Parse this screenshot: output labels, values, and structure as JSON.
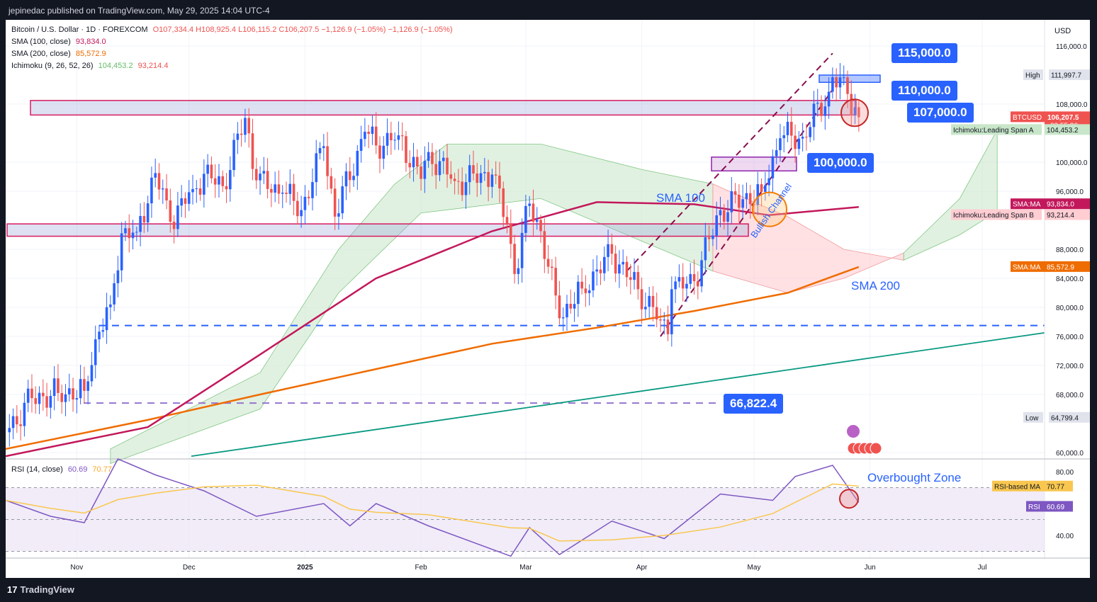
{
  "header": {
    "publisher": "jepinedac published on TradingView.com, May 29, 2025 14:04 UTC-4"
  },
  "footer": {
    "brand": "TradingView"
  },
  "legend": {
    "symbol": "Bitcoin / U.S. Dollar · 1D · FOREXCOM",
    "ohlc": "O107,334.4  H108,925.4  L106,115.2  C106,207.5  −1,126.9 (−1.05%)  −1,126.9 (−1.05%)",
    "sma100_label": "SMA (100, close)",
    "sma100_value": "93,834.0",
    "sma200_label": "SMA (200, close)",
    "sma200_value": "85,572.9",
    "ichimoku_label": "Ichimoku (9, 26, 52, 26)",
    "ichimoku_a": "104,453.2",
    "ichimoku_b": "93,214.4",
    "rsi_label": "RSI (14, close)",
    "rsi_value": "60.69",
    "rsi_ma_value": "70.77"
  },
  "colors": {
    "up": "#2962ff",
    "down": "#ef5350",
    "sma100": "#c2185b",
    "sma200": "#ef6c00",
    "cloud_green": "#c8e6c9",
    "cloud_red": "#ffcdd2",
    "rsi": "#7e57c2",
    "rsi_ma": "#f9c74f",
    "accent": "#2962ff",
    "trendline": "#089981"
  },
  "axis": {
    "currency": "USD",
    "price_ticks": [
      "116,000.0",
      "108,000.0",
      "100,000.0",
      "96,000.0",
      "88,000.0",
      "84,000.0",
      "80,000.0",
      "76,000.0",
      "72,000.0",
      "68,000.0",
      "60,000.0"
    ],
    "time_ticks": [
      "Nov",
      "Dec",
      "2025",
      "Feb",
      "Mar",
      "Apr",
      "May",
      "Jun",
      "Jul"
    ],
    "rsi_ticks": [
      "80.00",
      "40.00"
    ]
  },
  "price_labels": {
    "high_label": "High",
    "high_value": "111,997.7",
    "low_label": "Low",
    "low_value": "64,799.4",
    "btc_label": "BTCUSD",
    "btc_value": "106,207.5",
    "countdown": "02:55:36",
    "span_a_label": "Ichimoku:Leading Span A",
    "span_a_value": "104,453.2",
    "sma100_tag": "SMA:MA",
    "sma100_tag_value": "93,834.0",
    "span_b_label": "Ichimoku:Leading Span B",
    "span_b_value": "93,214.4",
    "sma200_tag": "SMA:MA",
    "sma200_tag_value": "85,572.9",
    "rsi_ma_tag": "RSI-based MA",
    "rsi_ma_tag_value": "70.77",
    "rsi_tag": "RSI",
    "rsi_tag_value": "60.69"
  },
  "annotations": {
    "level_115": "115,000.0",
    "level_110": "110,000.0",
    "level_107": "107,000.0",
    "level_100": "100,000.0",
    "level_66": "66,822.4",
    "sma100": "SMA 100",
    "sma200": "SMA 200",
    "channel": "Bullish Channel",
    "overbought": "Overbought Zone"
  },
  "chart_data": {
    "type": "candlestick",
    "symbol": "BTCUSD",
    "timeframe": "1D",
    "ylim": [
      58000,
      120000
    ],
    "close_series": [
      {
        "date": "2024-10-13",
        "close": 62800
      },
      {
        "date": "2024-10-20",
        "close": 67500
      },
      {
        "date": "2024-10-27",
        "close": 68200
      },
      {
        "date": "2024-11-03",
        "close": 68500
      },
      {
        "date": "2024-11-06",
        "close": 75600
      },
      {
        "date": "2024-11-10",
        "close": 80400
      },
      {
        "date": "2024-11-13",
        "close": 90200
      },
      {
        "date": "2024-11-17",
        "close": 90400
      },
      {
        "date": "2024-11-22",
        "close": 98500
      },
      {
        "date": "2024-11-26",
        "close": 91800
      },
      {
        "date": "2024-12-02",
        "close": 96300
      },
      {
        "date": "2024-12-05",
        "close": 98400
      },
      {
        "date": "2024-12-10",
        "close": 96700
      },
      {
        "date": "2024-12-16",
        "close": 106100
      },
      {
        "date": "2024-12-19",
        "close": 97500
      },
      {
        "date": "2024-12-26",
        "close": 95800
      },
      {
        "date": "2024-12-31",
        "close": 93400
      },
      {
        "date": "2025-01-06",
        "close": 102200
      },
      {
        "date": "2025-01-09",
        "close": 92500
      },
      {
        "date": "2025-01-17",
        "close": 104200
      },
      {
        "date": "2025-01-20",
        "close": 102300
      },
      {
        "date": "2025-01-26",
        "close": 103700
      },
      {
        "date": "2025-02-01",
        "close": 97700
      },
      {
        "date": "2025-02-03",
        "close": 101400
      },
      {
        "date": "2025-02-10",
        "close": 97400
      },
      {
        "date": "2025-02-20",
        "close": 98300
      },
      {
        "date": "2025-02-24",
        "close": 91500
      },
      {
        "date": "2025-02-26",
        "close": 84600
      },
      {
        "date": "2025-03-02",
        "close": 94300
      },
      {
        "date": "2025-03-05",
        "close": 90500
      },
      {
        "date": "2025-03-10",
        "close": 78500
      },
      {
        "date": "2025-03-16",
        "close": 82600
      },
      {
        "date": "2025-03-24",
        "close": 87400
      },
      {
        "date": "2025-03-31",
        "close": 82500
      },
      {
        "date": "2025-04-06",
        "close": 78200
      },
      {
        "date": "2025-04-08",
        "close": 76300
      },
      {
        "date": "2025-04-09",
        "close": 82500
      },
      {
        "date": "2025-04-15",
        "close": 83600
      },
      {
        "date": "2025-04-22",
        "close": 93400
      },
      {
        "date": "2025-04-28",
        "close": 94900
      },
      {
        "date": "2025-05-03",
        "close": 95900
      },
      {
        "date": "2025-05-08",
        "close": 103300
      },
      {
        "date": "2025-05-14",
        "close": 103500
      },
      {
        "date": "2025-05-21",
        "close": 109700
      },
      {
        "date": "2025-05-22",
        "close": 111700
      },
      {
        "date": "2025-05-26",
        "close": 109400
      },
      {
        "date": "2025-05-29",
        "close": 106207.5
      }
    ],
    "sma100": [
      {
        "date": "2024-10-13",
        "value": 59500
      },
      {
        "date": "2024-11-20",
        "value": 63500
      },
      {
        "date": "2024-12-20",
        "value": 73500
      },
      {
        "date": "2025-01-20",
        "value": 84000
      },
      {
        "date": "2025-02-20",
        "value": 90500
      },
      {
        "date": "2025-03-20",
        "value": 94500
      },
      {
        "date": "2025-04-15",
        "value": 94200
      },
      {
        "date": "2025-05-05",
        "value": 92700
      },
      {
        "date": "2025-05-29",
        "value": 93834.0
      }
    ],
    "sma200": [
      {
        "date": "2024-10-13",
        "value": 60500
      },
      {
        "date": "2024-11-20",
        "value": 64500
      },
      {
        "date": "2024-12-20",
        "value": 68000
      },
      {
        "date": "2025-01-20",
        "value": 71500
      },
      {
        "date": "2025-02-20",
        "value": 75000
      },
      {
        "date": "2025-03-20",
        "value": 77200
      },
      {
        "date": "2025-04-15",
        "value": 79500
      },
      {
        "date": "2025-05-10",
        "value": 82000
      },
      {
        "date": "2025-05-29",
        "value": 85572.9
      }
    ],
    "resistance_zone": [
      106500,
      108500
    ],
    "support_zone": [
      89800,
      91500
    ],
    "channel_zone": [
      98800,
      100700
    ],
    "top_zone": [
      111000,
      112000
    ],
    "dashed_level_blue": 77500,
    "dashed_level_purple": 66822.4,
    "rsi": {
      "name": "RSI (14, close)",
      "value": 60.69,
      "ma": 70.77,
      "levels": [
        70,
        30
      ],
      "points": [
        {
          "date": "2024-10-13",
          "rsi": 62
        },
        {
          "date": "2024-10-25",
          "rsi": 52
        },
        {
          "date": "2024-11-03",
          "rsi": 48
        },
        {
          "date": "2024-11-12",
          "rsi": 88
        },
        {
          "date": "2024-11-22",
          "rsi": 78
        },
        {
          "date": "2024-12-05",
          "rsi": 68
        },
        {
          "date": "2024-12-19",
          "rsi": 52
        },
        {
          "date": "2025-01-06",
          "rsi": 60
        },
        {
          "date": "2025-01-13",
          "rsi": 46
        },
        {
          "date": "2025-01-20",
          "rsi": 60
        },
        {
          "date": "2025-02-03",
          "rsi": 46
        },
        {
          "date": "2025-02-25",
          "rsi": 27
        },
        {
          "date": "2025-03-02",
          "rsi": 45
        },
        {
          "date": "2025-03-10",
          "rsi": 28
        },
        {
          "date": "2025-03-24",
          "rsi": 49
        },
        {
          "date": "2025-04-07",
          "rsi": 38
        },
        {
          "date": "2025-04-22",
          "rsi": 66
        },
        {
          "date": "2025-05-06",
          "rsi": 62
        },
        {
          "date": "2025-05-12",
          "rsi": 77
        },
        {
          "date": "2025-05-22",
          "rsi": 84
        },
        {
          "date": "2025-05-29",
          "rsi": 60.69
        }
      ]
    }
  }
}
